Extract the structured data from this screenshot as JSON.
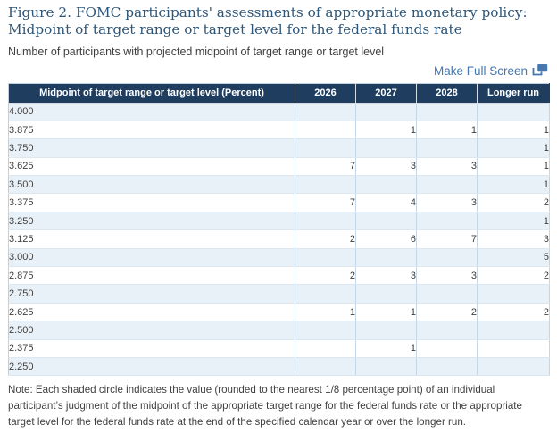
{
  "figure": {
    "title": "Figure 2. FOMC participants' assessments of appropriate monetary policy: Midpoint of target range or target level for the federal funds rate",
    "subtitle": "Number of participants with projected midpoint of target range or target level",
    "fullscreen_label": "Make Full Screen",
    "note": "Note: Each shaded circle indicates the value (rounded to the nearest 1/8 percentage point) of an individual participant’s judgment of the midpoint of the appropriate target range for the federal funds rate or the appropriate target level for the federal funds rate at the end of the specified calendar year or over the longer run."
  },
  "colors": {
    "title_text": "#2d567a",
    "link_blue": "#4677ae",
    "header_bg": "#1f3d5e",
    "header_text": "#ffffff",
    "row_alt_bg": "#e9f1f8",
    "row_bg": "#ffffff",
    "cell_text": "#3f3f3f"
  },
  "chart_data": {
    "type": "table",
    "title": "Figure 2. FOMC participants' assessments of appropriate monetary policy: Midpoint of target range or target level for the federal funds rate",
    "subtitle": "Number of participants with projected midpoint of target range or target level",
    "columns": [
      "Midpoint of target range or target level (Percent)",
      "2026",
      "2027",
      "2028",
      "Longer run"
    ],
    "rows": [
      [
        "4.000",
        "",
        "",
        "",
        ""
      ],
      [
        "3.875",
        "",
        "1",
        "1",
        "1"
      ],
      [
        "3.750",
        "",
        "",
        "",
        "1"
      ],
      [
        "3.625",
        "7",
        "3",
        "3",
        "1"
      ],
      [
        "3.500",
        "",
        "",
        "",
        "1"
      ],
      [
        "3.375",
        "7",
        "4",
        "3",
        "2"
      ],
      [
        "3.250",
        "",
        "",
        "",
        "1"
      ],
      [
        "3.125",
        "2",
        "6",
        "7",
        "3"
      ],
      [
        "3.000",
        "",
        "",
        "",
        "5"
      ],
      [
        "2.875",
        "2",
        "3",
        "3",
        "2"
      ],
      [
        "2.750",
        "",
        "",
        "",
        ""
      ],
      [
        "2.625",
        "1",
        "1",
        "2",
        "2"
      ],
      [
        "2.500",
        "",
        "",
        "",
        ""
      ],
      [
        "2.375",
        "",
        "1",
        "",
        ""
      ],
      [
        "2.250",
        "",
        "",
        "",
        ""
      ]
    ]
  }
}
